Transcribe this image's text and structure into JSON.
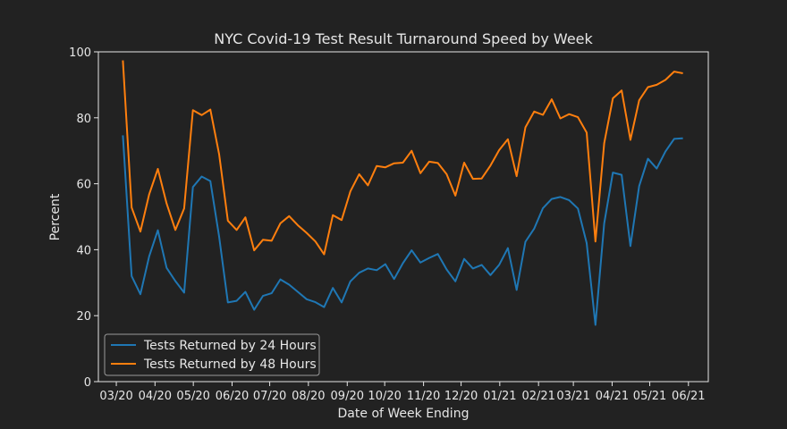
{
  "chart_data": {
    "type": "line",
    "title": "NYC Covid-19 Test Result Turnaround Speed by Week",
    "xlabel": "Date of Week Ending",
    "ylabel": "Percent",
    "ylim": [
      0,
      100
    ],
    "yticks": [
      0,
      20,
      40,
      60,
      80,
      100
    ],
    "x_ticks": [
      {
        "label": "03/20",
        "index": -0.75
      },
      {
        "label": "04/20",
        "index": 3.67
      },
      {
        "label": "05/20",
        "index": 8.05
      },
      {
        "label": "06/20",
        "index": 12.48
      },
      {
        "label": "07/20",
        "index": 16.78
      },
      {
        "label": "08/20",
        "index": 21.2
      },
      {
        "label": "09/20",
        "index": 25.64
      },
      {
        "label": "10/20",
        "index": 29.92
      },
      {
        "label": "11/20",
        "index": 34.36
      },
      {
        "label": "12/20",
        "index": 38.65
      },
      {
        "label": "01/21",
        "index": 43.07
      },
      {
        "label": "02/21",
        "index": 47.5
      },
      {
        "label": "03/21",
        "index": 51.48
      },
      {
        "label": "04/21",
        "index": 55.91
      },
      {
        "label": "05/21",
        "index": 60.21
      },
      {
        "label": "06/21",
        "index": 64.63
      }
    ],
    "xlim": [
      -2.8,
      66.9
    ],
    "legend_position": "bottom-left",
    "grid": false,
    "series": [
      {
        "name": "Tests Returned by 24 Hours",
        "color": "#1f77b4",
        "values": [
          74.7,
          32.0,
          26.5,
          38.0,
          45.9,
          34.5,
          30.5,
          27.0,
          59.0,
          62.2,
          60.8,
          44.0,
          24.0,
          24.5,
          27.2,
          21.8,
          26.0,
          26.8,
          31.0,
          29.4,
          27.2,
          25.0,
          24.1,
          22.6,
          28.4,
          24.0,
          30.4,
          33.0,
          34.3,
          33.8,
          35.6,
          31.1,
          35.9,
          39.8,
          36.1,
          37.5,
          38.7,
          34.0,
          30.4,
          37.2,
          34.3,
          35.4,
          32.3,
          35.4,
          40.5,
          27.8,
          42.4,
          46.4,
          52.6,
          55.4,
          56.0,
          55.0,
          52.5,
          42.0,
          17.2,
          48.0,
          63.4,
          62.7,
          41.1,
          59.3,
          67.6,
          64.6,
          69.8,
          73.6,
          73.8
        ]
      },
      {
        "name": "Tests Returned by 48 Hours",
        "color": "#ff7f0e",
        "values": [
          97.4,
          52.8,
          45.5,
          56.8,
          64.5,
          54.0,
          46.0,
          52.5,
          82.3,
          80.8,
          82.5,
          69.0,
          48.8,
          46.0,
          49.8,
          39.8,
          43.0,
          42.7,
          48.0,
          50.2,
          47.4,
          45.1,
          42.5,
          38.6,
          50.5,
          49.0,
          57.7,
          62.9,
          59.5,
          65.4,
          65.0,
          66.2,
          66.4,
          70.0,
          63.2,
          66.7,
          66.3,
          62.9,
          56.4,
          66.4,
          61.5,
          61.6,
          65.5,
          70.2,
          73.5,
          62.3,
          77.1,
          81.9,
          80.9,
          85.6,
          79.8,
          81.1,
          80.2,
          75.5,
          42.5,
          72.3,
          85.9,
          88.3,
          73.3,
          85.3,
          89.3,
          90.0,
          91.5,
          94.0,
          93.5
        ]
      }
    ]
  }
}
